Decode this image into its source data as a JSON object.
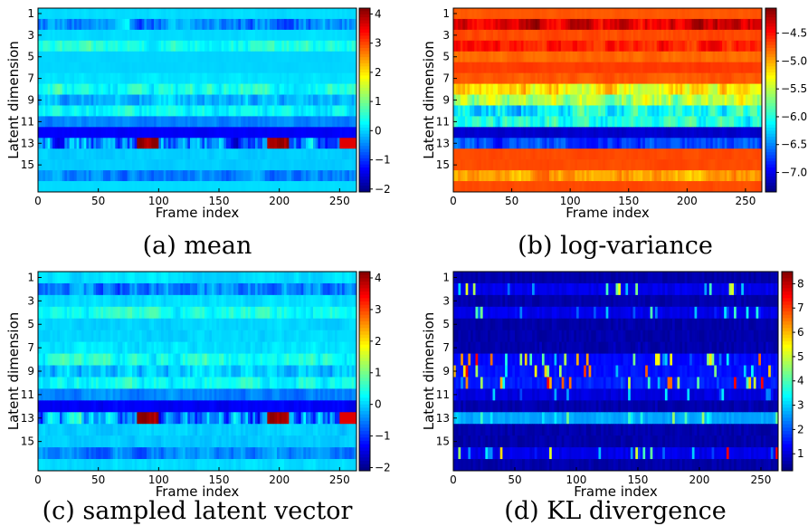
{
  "chart_data": [
    {
      "type": "heatmap",
      "caption": "(a) mean",
      "xlabel": "Frame index",
      "ylabel": "Latent dimension",
      "x_range": [
        0,
        264
      ],
      "x_ticks": [
        "0",
        "50",
        "100",
        "150",
        "200",
        "250"
      ],
      "y_ticks": [
        "1",
        "3",
        "5",
        "7",
        "9",
        "11",
        "13",
        "15"
      ],
      "colorbar": {
        "range": [
          -2.1,
          4.2
        ],
        "ticks": [
          "4",
          "3",
          "2",
          "1",
          "0",
          "−1",
          "−2"
        ],
        "tick_values": [
          4,
          3,
          2,
          1,
          0,
          -1,
          -2
        ]
      },
      "row_levels": [
        0.05,
        -0.5,
        0.05,
        0.4,
        0.0,
        0.0,
        0.1,
        0.4,
        -0.1,
        0.3,
        -0.5,
        -1.35,
        -0.5,
        -0.05,
        -0.05,
        -0.5,
        0.05
      ],
      "row_variation": [
        0.1,
        0.9,
        0.1,
        0.6,
        0.05,
        0.05,
        0.15,
        0.7,
        0.7,
        0.6,
        0.3,
        0.1,
        1.8,
        0.15,
        0.1,
        0.6,
        0.05
      ]
    },
    {
      "type": "heatmap",
      "caption": "(b) log-variance",
      "xlabel": "Frame index",
      "ylabel": "Latent dimension",
      "x_range": [
        0,
        264
      ],
      "x_ticks": [
        "0",
        "50",
        "100",
        "150",
        "200",
        "250"
      ],
      "y_ticks": [
        "1",
        "3",
        "5",
        "7",
        "9",
        "11",
        "13",
        "15"
      ],
      "colorbar": {
        "range": [
          -7.35,
          -4.05
        ],
        "ticks": [
          "−4.5",
          "−5.0",
          "−5.5",
          "−6.0",
          "−6.5",
          "−7.0"
        ],
        "tick_values": [
          -4.5,
          -5.0,
          -5.5,
          -6.0,
          -6.5,
          -7.0
        ]
      },
      "row_levels": [
        -4.75,
        -4.35,
        -4.7,
        -4.55,
        -4.8,
        -4.65,
        -4.75,
        -5.25,
        -5.6,
        -6.1,
        -6.0,
        -7.1,
        -6.7,
        -4.7,
        -4.7,
        -5.0,
        -4.7
      ],
      "row_variation": [
        0.05,
        0.4,
        0.1,
        0.3,
        0.1,
        0.05,
        0.1,
        0.5,
        0.6,
        0.6,
        0.5,
        0.1,
        0.4,
        0.05,
        0.05,
        0.3,
        0.05
      ]
    },
    {
      "type": "heatmap",
      "caption": "(c) sampled latent vector",
      "xlabel": "Frame index",
      "ylabel": "Latent dimension",
      "x_range": [
        0,
        264
      ],
      "x_ticks": [
        "0",
        "50",
        "100",
        "150",
        "200",
        "250"
      ],
      "y_ticks": [
        "1",
        "3",
        "5",
        "7",
        "9",
        "11",
        "13",
        "15"
      ],
      "colorbar": {
        "range": [
          -2.1,
          4.2
        ],
        "ticks": [
          "4",
          "3",
          "2",
          "1",
          "0",
          "−1",
          "−2"
        ],
        "tick_values": [
          4,
          3,
          2,
          1,
          0,
          -1,
          -2
        ]
      },
      "row_levels": [
        0.05,
        -0.5,
        0.05,
        0.4,
        0.0,
        0.0,
        0.1,
        0.4,
        -0.1,
        0.3,
        -0.5,
        -1.35,
        -0.5,
        -0.05,
        -0.05,
        -0.5,
        0.05
      ],
      "row_variation": [
        0.25,
        0.9,
        0.25,
        0.6,
        0.2,
        0.2,
        0.3,
        0.7,
        0.7,
        0.6,
        0.4,
        0.2,
        1.8,
        0.25,
        0.2,
        0.6,
        0.2
      ]
    },
    {
      "type": "heatmap",
      "caption": "(d) KL divergence",
      "xlabel": "Frame index",
      "ylabel": "Latent dimension",
      "x_range": [
        0,
        264
      ],
      "x_ticks": [
        "0",
        "50",
        "100",
        "150",
        "200",
        "250"
      ],
      "y_ticks": [
        "1",
        "3",
        "5",
        "7",
        "9",
        "11",
        "13",
        "15"
      ],
      "colorbar": {
        "range": [
          0.3,
          8.5
        ],
        "ticks": [
          "8",
          "7",
          "6",
          "5",
          "4",
          "3",
          "2",
          "1"
        ],
        "tick_values": [
          8,
          7,
          6,
          5,
          4,
          3,
          2,
          1
        ]
      },
      "row_levels": [
        0.5,
        1.0,
        0.5,
        1.0,
        0.5,
        0.5,
        0.5,
        1.2,
        1.3,
        1.4,
        0.9,
        0.5,
        2.5,
        0.5,
        0.5,
        1.0,
        0.5
      ],
      "row_variation": [
        0.1,
        2.0,
        0.1,
        1.5,
        0.1,
        0.1,
        0.2,
        2.5,
        2.8,
        2.5,
        1.2,
        0.2,
        1.0,
        0.1,
        0.1,
        2.2,
        0.1
      ]
    }
  ]
}
